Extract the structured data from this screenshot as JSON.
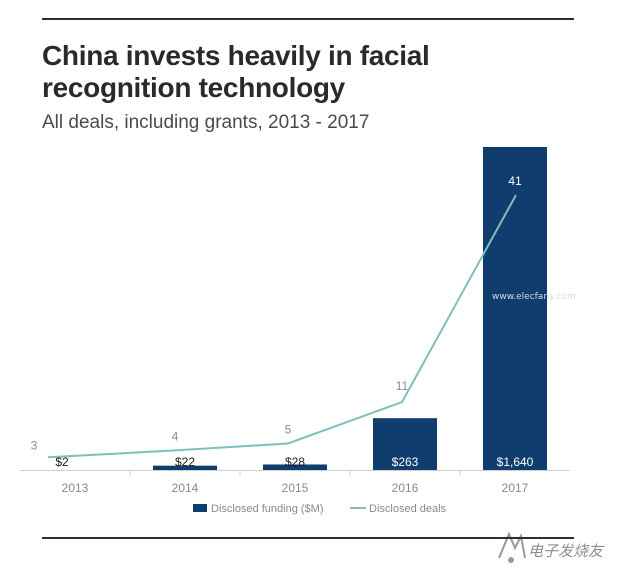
{
  "chart_data": {
    "type": "bar",
    "title": "China invests heavily in facial recognition technology",
    "subtitle": "All deals, including grants, 2013 - 2017",
    "categories": [
      "2013",
      "2014",
      "2015",
      "2016",
      "2017"
    ],
    "series": [
      {
        "name": "Disclosed funding ($M)",
        "type": "bar",
        "values": [
          2,
          22,
          28,
          263,
          1640
        ],
        "labels": [
          "$2",
          "$22",
          "$28",
          "$263",
          "$1,640"
        ],
        "color": "#0f3d6e"
      },
      {
        "name": "Disclosed deals",
        "type": "line",
        "values": [
          3,
          4,
          5,
          11,
          41
        ],
        "labels": [
          "3",
          "4",
          "5",
          "11",
          "41"
        ],
        "color": "#7fbfbd"
      }
    ],
    "ylim_bar": [
      0,
      1640
    ],
    "ylim_line": [
      0,
      41
    ],
    "grid": false,
    "legend_position": "bottom"
  },
  "watermark": {
    "text": "电子发烧友",
    "url": "www.elecfans.com"
  }
}
